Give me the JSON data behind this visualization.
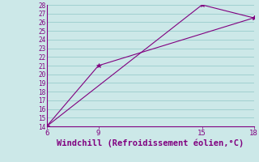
{
  "line1_x": [
    6,
    9,
    18
  ],
  "line1_y": [
    14,
    21,
    26.5
  ],
  "line2_x": [
    6,
    15,
    18
  ],
  "line2_y": [
    14,
    28,
    26.5
  ],
  "xlim": [
    6,
    18
  ],
  "ylim": [
    14,
    28
  ],
  "xticks": [
    6,
    9,
    15,
    18
  ],
  "yticks": [
    14,
    15,
    16,
    17,
    18,
    19,
    20,
    21,
    22,
    23,
    24,
    25,
    26,
    27,
    28
  ],
  "xlabel": "Windchill (Refroidissement éolien,°C)",
  "line_color": "#800080",
  "bg_color": "#cce8e8",
  "grid_color": "#99cccc",
  "marker": "*",
  "markersize": 4,
  "linewidth": 0.8,
  "xlabel_fontsize": 7.5,
  "ytick_fontsize": 5.5,
  "xtick_fontsize": 6.5
}
